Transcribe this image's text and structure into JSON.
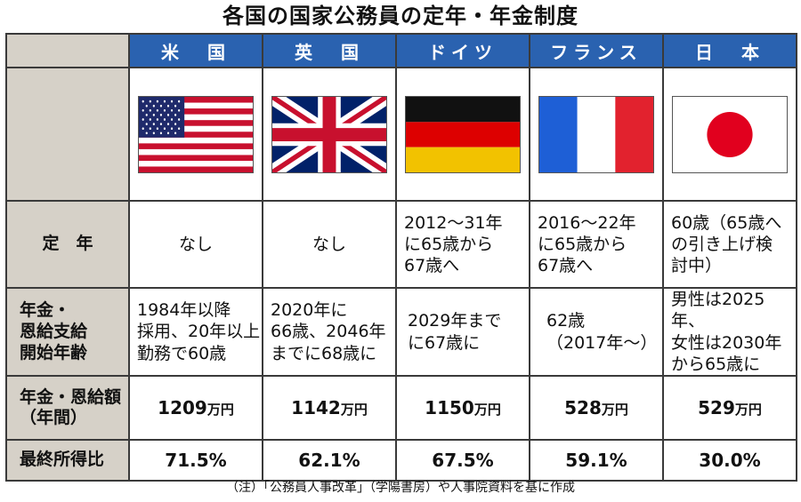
{
  "title": "各国の国家公務員の定年・年金制度",
  "countries": [
    "米　国",
    "英　国",
    "ドイツ",
    "フランス",
    "日　本"
  ],
  "flags": [
    "us-flag-icon",
    "uk-flag-icon",
    "germany-flag-icon",
    "france-flag-icon",
    "japan-flag-icon"
  ],
  "rows": {
    "retirement": {
      "label": "定　年",
      "values": [
        "なし",
        "なし",
        "2012～31年\nに65歳から\n67歳へ",
        "2016～22年\nに65歳から\n67歳へ",
        "60歳（65歳へ\nの引き上げ検\n討中）"
      ]
    },
    "pension_age": {
      "label": "年金・\n恩給支給\n開始年齢",
      "values": [
        "1984年以降\n採用、20年以上\n勤務で60歳",
        "2020年に\n66歳、2046年\nまでに68歳に",
        "2029年まで\nに67歳に",
        "62歳\n（2017年～）",
        "男性は2025年、\n女性は2030年\nから65歳に"
      ]
    },
    "pension_amount": {
      "label": "年金・恩給額\n（年間）",
      "values": [
        "1209",
        "1142",
        "1150",
        "528",
        "529"
      ],
      "unit": "万円"
    },
    "replacement_ratio": {
      "label": "最終所得比",
      "values": [
        "71.5%",
        "62.1%",
        "67.5%",
        "59.1%",
        "30.0%"
      ]
    }
  },
  "note": "（注）「公務員人事改革」（学陽書房）や人事院資料を基に作成",
  "colors": {
    "header_blue": "#2a62b0",
    "label_gray": "#d6d1c8"
  }
}
